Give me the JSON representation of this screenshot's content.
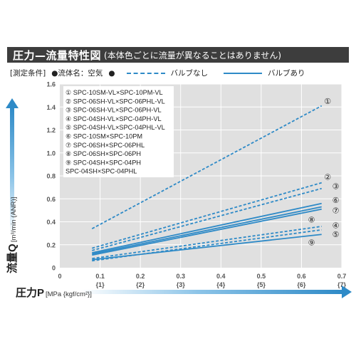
{
  "header": {
    "title_main": "圧力—流量特性図",
    "title_sub": "(本体色ごとに流量が異なることはありません)"
  },
  "conditions": {
    "label": "[測定条件]",
    "fluid": "●流体名：空気",
    "no_valve": "●",
    "no_valve_label": "バルブなし",
    "with_valve_label": "バルブあり"
  },
  "colors": {
    "accent": "#2e8ac7",
    "title_bg": "#3d3d3d",
    "axis_text": "#555555"
  },
  "chart_data": {
    "type": "line",
    "xlabel_main": "圧力P",
    "xlabel_unit": "[MPa {kgf/cm²}]",
    "ylabel_main": "流量Q",
    "ylabel_unit": "[m³/min (ANR)]",
    "xlim": [
      0,
      0.7
    ],
    "ylim": [
      0,
      1.6
    ],
    "x_ticks": [
      "0.1",
      "0.2",
      "0.3",
      "0.4",
      "0.5",
      "0.6",
      "0.7"
    ],
    "x_ticks_kgf": [
      "{1}",
      "{2}",
      "{3}",
      "{4}",
      "{5}",
      "{6}",
      "{7}"
    ],
    "y_ticks": [
      "0",
      "0.2",
      "0.4",
      "0.6",
      "0.8",
      "1.0",
      "1.2",
      "1.4",
      "1.6"
    ],
    "legend_placement": "top-left",
    "legend_items": [
      "① SPC-10SM-VL×SPC-10PM-VL",
      "② SPC-06SH-VL×SPC-06PHL-VL",
      "③ SPC-06SH-VL×SPC-06PH-VL",
      "④ SPC-04SH-VL×SPC-04PH-VL",
      "⑤ SPC-04SH-VL×SPC-04PHL-VL",
      "⑥ SPC-10SM×SPC-10PM",
      "⑦ SPC-06SH×SPC-06PHL",
      "⑧ SPC-06SH×SPC-06PH",
      "⑨ SPC-04SH×SPC-04PH",
      "   SPC-04SH×SPC-04PHL"
    ],
    "series": [
      {
        "name": "①",
        "style": "dashed",
        "x": [
          0.08,
          0.65
        ],
        "y": [
          0.34,
          1.41
        ]
      },
      {
        "name": "②",
        "style": "dashed",
        "x": [
          0.08,
          0.65
        ],
        "y": [
          0.17,
          0.74
        ]
      },
      {
        "name": "③",
        "style": "dashed",
        "x": [
          0.08,
          0.65
        ],
        "y": [
          0.15,
          0.69
        ]
      },
      {
        "name": "④",
        "style": "dashed",
        "x": [
          0.08,
          0.65
        ],
        "y": [
          0.08,
          0.36
        ]
      },
      {
        "name": "⑤",
        "style": "dashed",
        "x": [
          0.08,
          0.65
        ],
        "y": [
          0.06,
          0.33
        ]
      },
      {
        "name": "⑥",
        "style": "solid",
        "x": [
          0.08,
          0.65
        ],
        "y": [
          0.13,
          0.56
        ]
      },
      {
        "name": "⑦",
        "style": "solid",
        "x": [
          0.08,
          0.65
        ],
        "y": [
          0.11,
          0.51
        ]
      },
      {
        "name": "⑧",
        "style": "solid",
        "x": [
          0.08,
          0.65
        ],
        "y": [
          0.12,
          0.53
        ]
      },
      {
        "name": "⑨",
        "style": "solid",
        "x": [
          0.08,
          0.65
        ],
        "y": [
          0.07,
          0.29
        ]
      }
    ],
    "series_labels": [
      {
        "text": "①",
        "x": 0.665,
        "y": 1.45
      },
      {
        "text": "②",
        "x": 0.665,
        "y": 0.79
      },
      {
        "text": "③",
        "x": 0.685,
        "y": 0.71
      },
      {
        "text": "⑥",
        "x": 0.685,
        "y": 0.59
      },
      {
        "text": "⑦",
        "x": 0.685,
        "y": 0.5
      },
      {
        "text": "⑧",
        "x": 0.625,
        "y": 0.42
      },
      {
        "text": "④",
        "x": 0.685,
        "y": 0.37
      },
      {
        "text": "⑤",
        "x": 0.685,
        "y": 0.29
      },
      {
        "text": "⑨",
        "x": 0.625,
        "y": 0.22
      }
    ]
  }
}
